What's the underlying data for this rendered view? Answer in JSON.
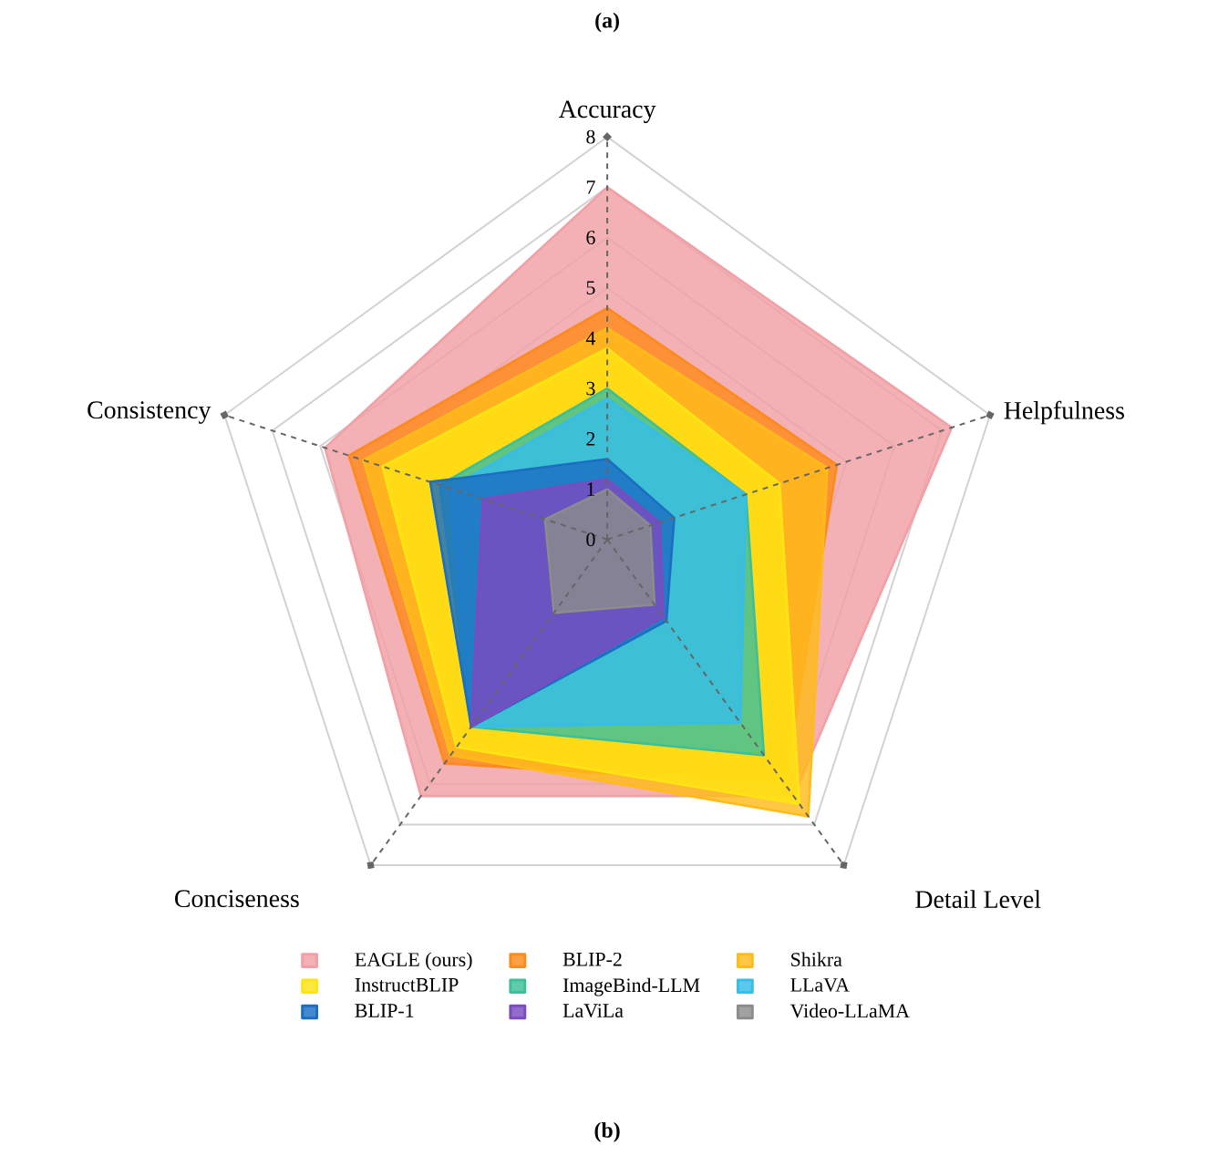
{
  "chart_data": {
    "type": "radar",
    "title": "(a)",
    "annotations": [
      "(b)"
    ],
    "categories": [
      "Accuracy",
      "Helpfulness",
      "Detail Level",
      "Conciseness",
      "Consistency"
    ],
    "ylim": [
      0,
      8
    ],
    "yticks": [
      0,
      1,
      2,
      3,
      4,
      5,
      6,
      7,
      8
    ],
    "grid": true,
    "legend": "bottom",
    "series": [
      {
        "name": "EAGLE (ours)",
        "color": "#f2a0a5",
        "values": [
          7.0,
          7.2,
          6.3,
          6.3,
          5.9
        ]
      },
      {
        "name": "BLIP-2",
        "color": "#ff8a1c",
        "values": [
          4.6,
          4.8,
          6.0,
          5.5,
          5.4
        ]
      },
      {
        "name": "Shikra",
        "color": "#ffbb1a",
        "values": [
          4.2,
          4.6,
          6.8,
          5.3,
          5.1
        ]
      },
      {
        "name": "InstructBLIP",
        "color": "#ffe414",
        "values": [
          3.8,
          3.6,
          6.5,
          5.1,
          4.7
        ]
      },
      {
        "name": "ImageBind-LLM",
        "color": "#3dbf99",
        "values": [
          3.0,
          2.9,
          5.3,
          4.6,
          3.5
        ]
      },
      {
        "name": "LLaVA",
        "color": "#36bde8",
        "values": [
          2.8,
          2.9,
          4.5,
          4.6,
          3.3
        ]
      },
      {
        "name": "BLIP-1",
        "color": "#1b6ec2",
        "values": [
          1.6,
          1.4,
          2.0,
          4.6,
          3.7
        ]
      },
      {
        "name": "LaViLa",
        "color": "#7a4cbf",
        "values": [
          1.2,
          1.1,
          1.9,
          4.6,
          2.6
        ]
      },
      {
        "name": "Video-LLaMA",
        "color": "#8c8c8c",
        "values": [
          1.0,
          0.9,
          1.6,
          1.8,
          1.3
        ]
      }
    ]
  }
}
